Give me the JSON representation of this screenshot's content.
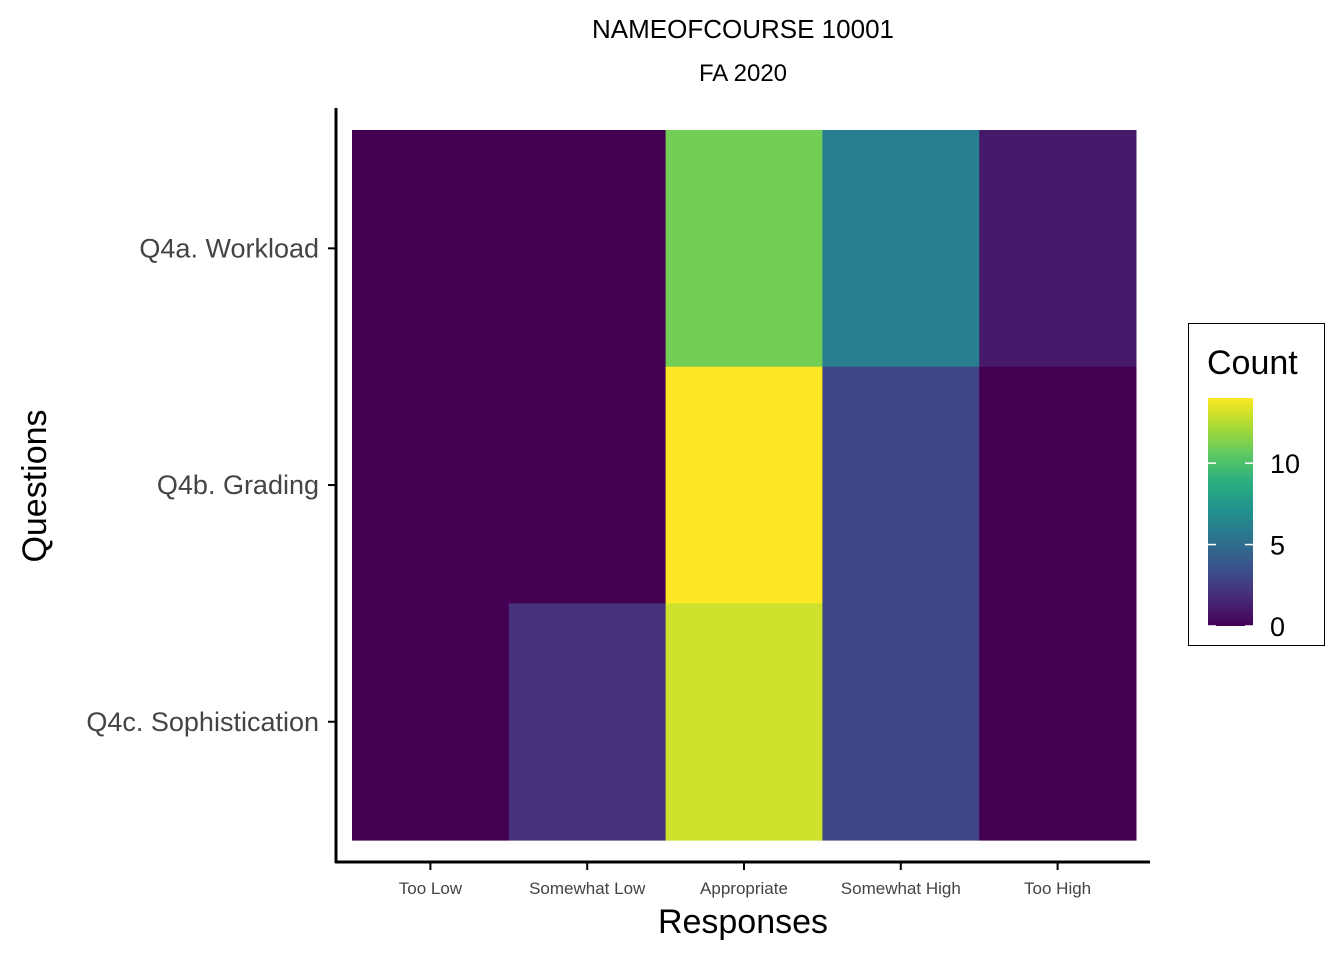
{
  "chart_data": {
    "type": "heatmap",
    "title": "NAMEOFCOURSE 10001",
    "subtitle": "FA 2020",
    "xlabel": "Responses",
    "ylabel": "Questions",
    "x_categories": [
      "Too Low",
      "Somewhat Low",
      "Appropriate",
      "Somewhat High",
      "Too High"
    ],
    "y_categories": [
      "Q4a. Workload",
      "Q4b. Grading",
      "Q4c. Sophistication"
    ],
    "values": [
      [
        0,
        0,
        11,
        6,
        1
      ],
      [
        0,
        0,
        14,
        3,
        0
      ],
      [
        0,
        2,
        13,
        3,
        0
      ]
    ],
    "legend": {
      "title": "Count",
      "ticks": [
        0,
        5,
        10
      ],
      "range": [
        0,
        14
      ],
      "placement": "right"
    },
    "colormap": "viridis",
    "grid": false
  }
}
